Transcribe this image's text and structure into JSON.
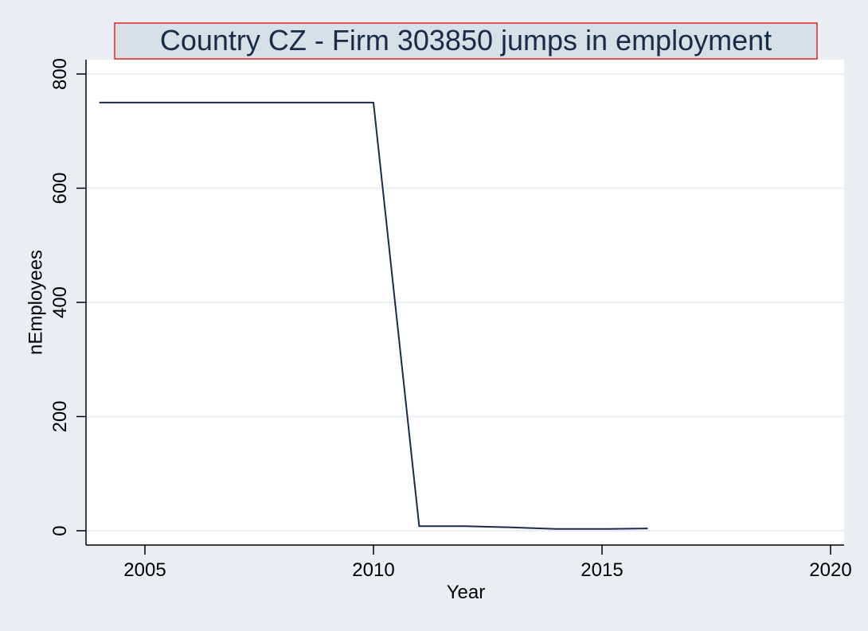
{
  "chart_data": {
    "type": "line",
    "title": "Country CZ - Firm 303850  jumps in employment",
    "xlabel": "Year",
    "ylabel": "nEmployees",
    "xlim": [
      2004,
      2020
    ],
    "ylim": [
      0,
      800
    ],
    "x_ticks": [
      2005,
      2010,
      2015,
      2020
    ],
    "y_ticks": [
      0,
      200,
      400,
      600,
      800
    ],
    "grid": true,
    "series": [
      {
        "x": [
          2004,
          2005,
          2006,
          2007,
          2008,
          2009,
          2010,
          2011,
          2012,
          2013,
          2014,
          2015,
          2016
        ],
        "y": [
          750,
          750,
          750,
          750,
          750,
          750,
          750,
          8,
          8,
          6,
          3,
          3,
          4
        ]
      }
    ]
  },
  "colors": {
    "background": "#e8eef1",
    "plot_area": "#ffffff",
    "line": "#1a2a4a",
    "title_box_fill": "#d6e0e6",
    "title_box_border": "#e3242b",
    "gridline": "#e8eef1"
  }
}
